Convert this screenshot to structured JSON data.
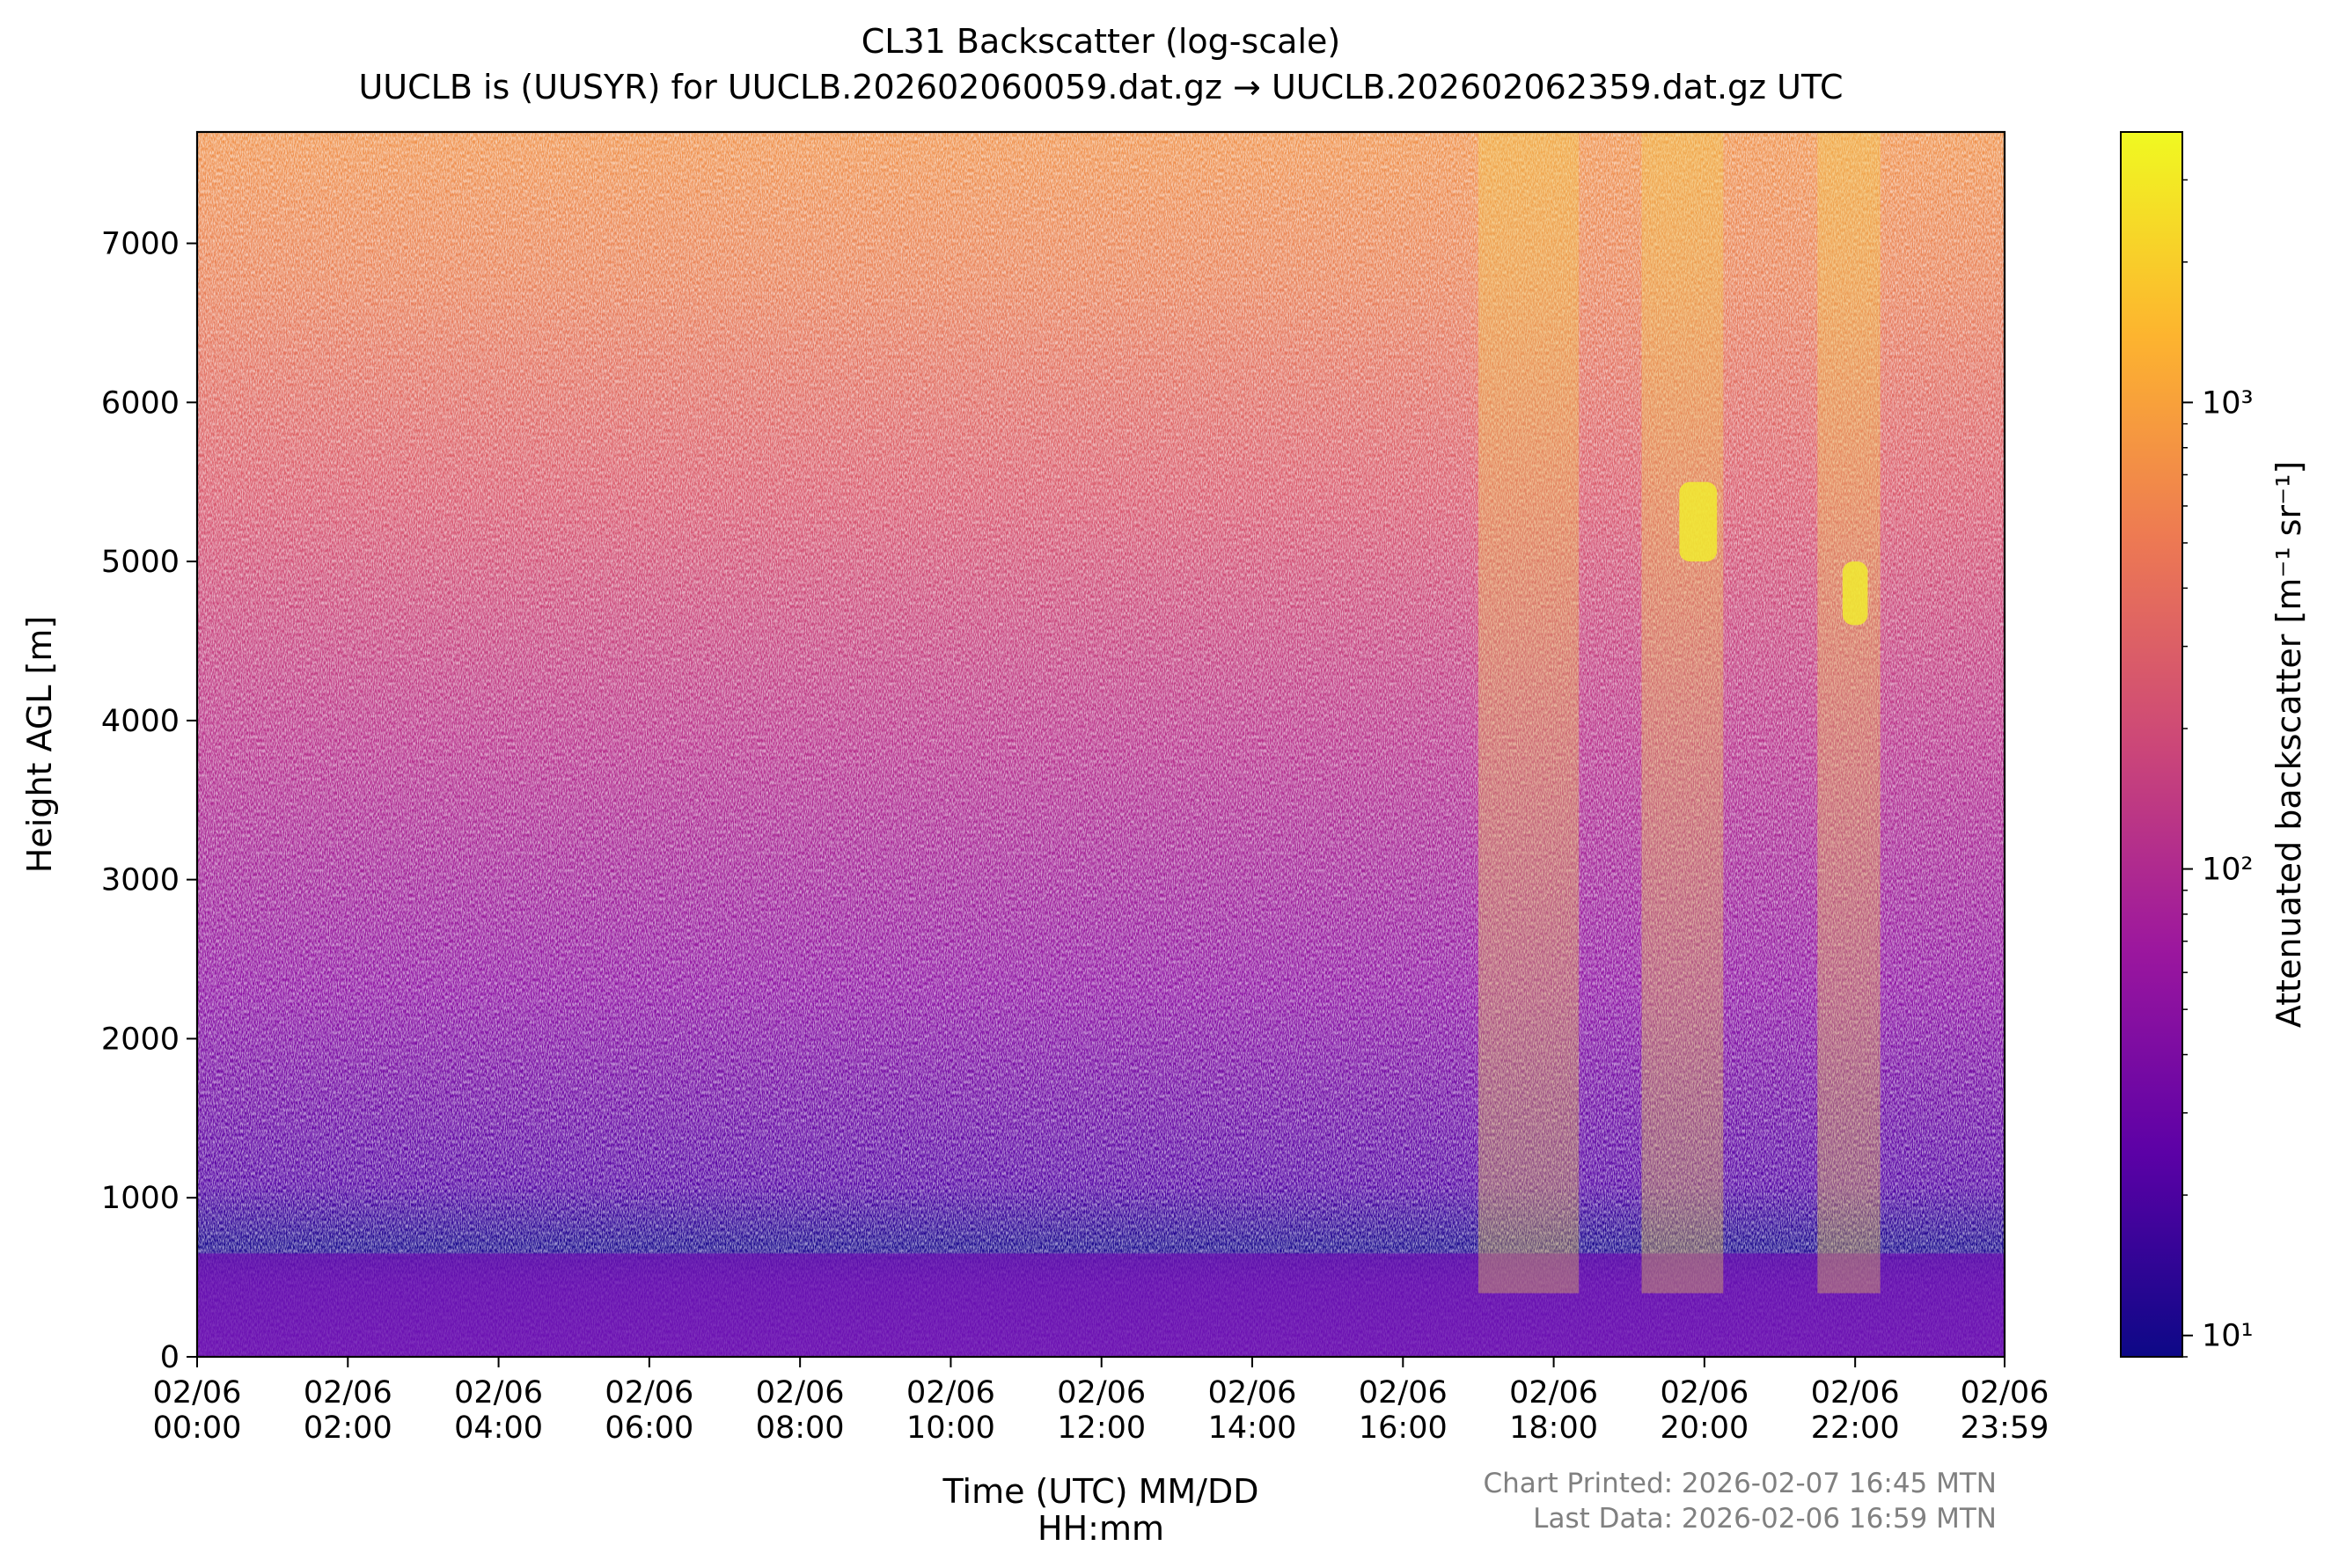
{
  "chart_data": {
    "type": "heatmap",
    "title": "CL31 Backscatter (log-scale)",
    "subtitle": "UUCLB is (UUSYR) for UUCLB.202602060059.dat.gz → UUCLB.202602062359.dat.gz UTC",
    "xlabel_line1": "Time (UTC) MM/DD",
    "xlabel_line2": "HH:mm",
    "ylabel": "Height AGL [m]",
    "xlim": [
      "2026-02-06 00:00",
      "2026-02-06 23:59"
    ],
    "ylim": [
      0,
      7700
    ],
    "x_ticks": [
      {
        "date": "02/06",
        "time": "00:00",
        "hour": 0
      },
      {
        "date": "02/06",
        "time": "02:00",
        "hour": 2
      },
      {
        "date": "02/06",
        "time": "04:00",
        "hour": 4
      },
      {
        "date": "02/06",
        "time": "06:00",
        "hour": 6
      },
      {
        "date": "02/06",
        "time": "08:00",
        "hour": 8
      },
      {
        "date": "02/06",
        "time": "10:00",
        "hour": 10
      },
      {
        "date": "02/06",
        "time": "12:00",
        "hour": 12
      },
      {
        "date": "02/06",
        "time": "14:00",
        "hour": 14
      },
      {
        "date": "02/06",
        "time": "16:00",
        "hour": 16
      },
      {
        "date": "02/06",
        "time": "18:00",
        "hour": 18
      },
      {
        "date": "02/06",
        "time": "20:00",
        "hour": 20
      },
      {
        "date": "02/06",
        "time": "22:00",
        "hour": 22
      },
      {
        "date": "02/06",
        "time": "23:59",
        "hour": 23.983
      }
    ],
    "y_ticks": [
      0,
      1000,
      2000,
      3000,
      4000,
      5000,
      6000,
      7000
    ],
    "colorbar": {
      "label": "Attenuated backscatter [m⁻¹ sr⁻¹]",
      "scale": "log",
      "range": [
        9,
        3800
      ],
      "colormap": "plasma",
      "colors": [
        "#0d0887",
        "#5c01a6",
        "#9c179e",
        "#cc4778",
        "#ed7953",
        "#fdb42f",
        "#f0f921"
      ],
      "ticks": [
        {
          "value": 10,
          "label": "10¹"
        },
        {
          "value": 100,
          "label": "10²"
        },
        {
          "value": 1000,
          "label": "10³"
        }
      ]
    },
    "grid": false,
    "features": [
      {
        "kind": "boundary-layer",
        "desc": "dense aerosol layer",
        "height_m": [
          0,
          650
        ],
        "time": [
          "00:00",
          "23:59"
        ]
      },
      {
        "kind": "cloud-layer",
        "time": [
          "19:40",
          "20:10"
        ],
        "height_m": [
          5000,
          5500
        ]
      },
      {
        "kind": "cloud-layer",
        "time": [
          "21:50",
          "22:10"
        ],
        "height_m": [
          4600,
          5000
        ]
      },
      {
        "kind": "high-backscatter-column",
        "time": [
          "17:00",
          "18:20"
        ],
        "height_m": [
          400,
          7700
        ]
      },
      {
        "kind": "high-backscatter-column",
        "time": [
          "19:10",
          "20:15"
        ],
        "height_m": [
          400,
          7700
        ]
      },
      {
        "kind": "high-backscatter-column",
        "time": [
          "21:30",
          "22:20"
        ],
        "height_m": [
          400,
          7700
        ]
      }
    ]
  },
  "footer": {
    "printed": "Chart Printed: 2026-02-07 16:45 MTN",
    "last_data": "Last Data: 2026-02-06 16:59 MTN"
  }
}
